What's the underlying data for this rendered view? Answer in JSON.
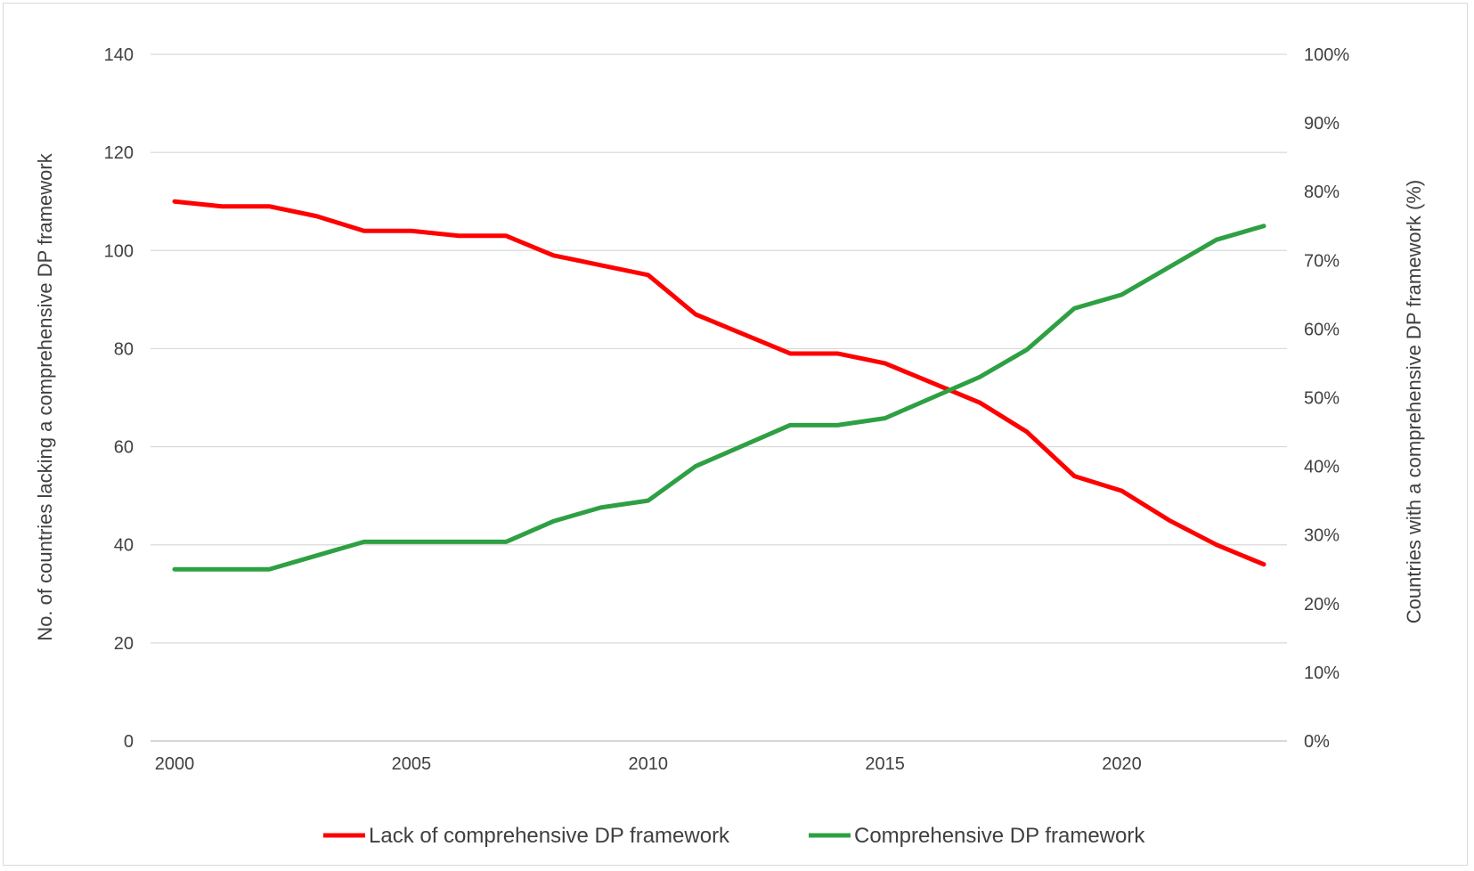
{
  "chart_data": {
    "type": "line",
    "title": "",
    "xlabel": "",
    "ylabel_left": "No. of countries lacking a comprehensive DP framework",
    "ylabel_right": "Countries with a comprehensive DP framework (%)",
    "x": [
      2000,
      2001,
      2002,
      2003,
      2004,
      2005,
      2006,
      2007,
      2008,
      2009,
      2010,
      2011,
      2012,
      2013,
      2014,
      2015,
      2016,
      2017,
      2018,
      2019,
      2020,
      2021,
      2022,
      2023
    ],
    "xlim": [
      2000,
      2023
    ],
    "x_ticks": [
      "2000",
      "2005",
      "2010",
      "2015",
      "2020"
    ],
    "ylim_left": [
      0,
      140
    ],
    "y_ticks_left": [
      "0",
      "20",
      "40",
      "60",
      "80",
      "100",
      "120",
      "140"
    ],
    "ylim_right": [
      0,
      100
    ],
    "y_ticks_right": [
      "0%",
      "10%",
      "20%",
      "30%",
      "40%",
      "50%",
      "60%",
      "70%",
      "80%",
      "90%",
      "100%"
    ],
    "grid": true,
    "legend_position": "bottom",
    "series": [
      {
        "name": "Lack of comprehensive DP framework",
        "axis": "left",
        "color": "#ff0000",
        "values": [
          110,
          109,
          109,
          107,
          104,
          104,
          103,
          103,
          99,
          97,
          95,
          87,
          83,
          79,
          79,
          77,
          73,
          69,
          63,
          54,
          51,
          45,
          40,
          36
        ]
      },
      {
        "name": "Comprehensive DP framework",
        "axis": "right",
        "color": "#2ea043",
        "values": [
          25,
          25,
          25,
          27,
          29,
          29,
          29,
          29,
          32,
          34,
          35,
          40,
          43,
          46,
          46,
          47,
          50,
          53,
          57,
          63,
          65,
          69,
          73,
          75
        ]
      }
    ]
  }
}
